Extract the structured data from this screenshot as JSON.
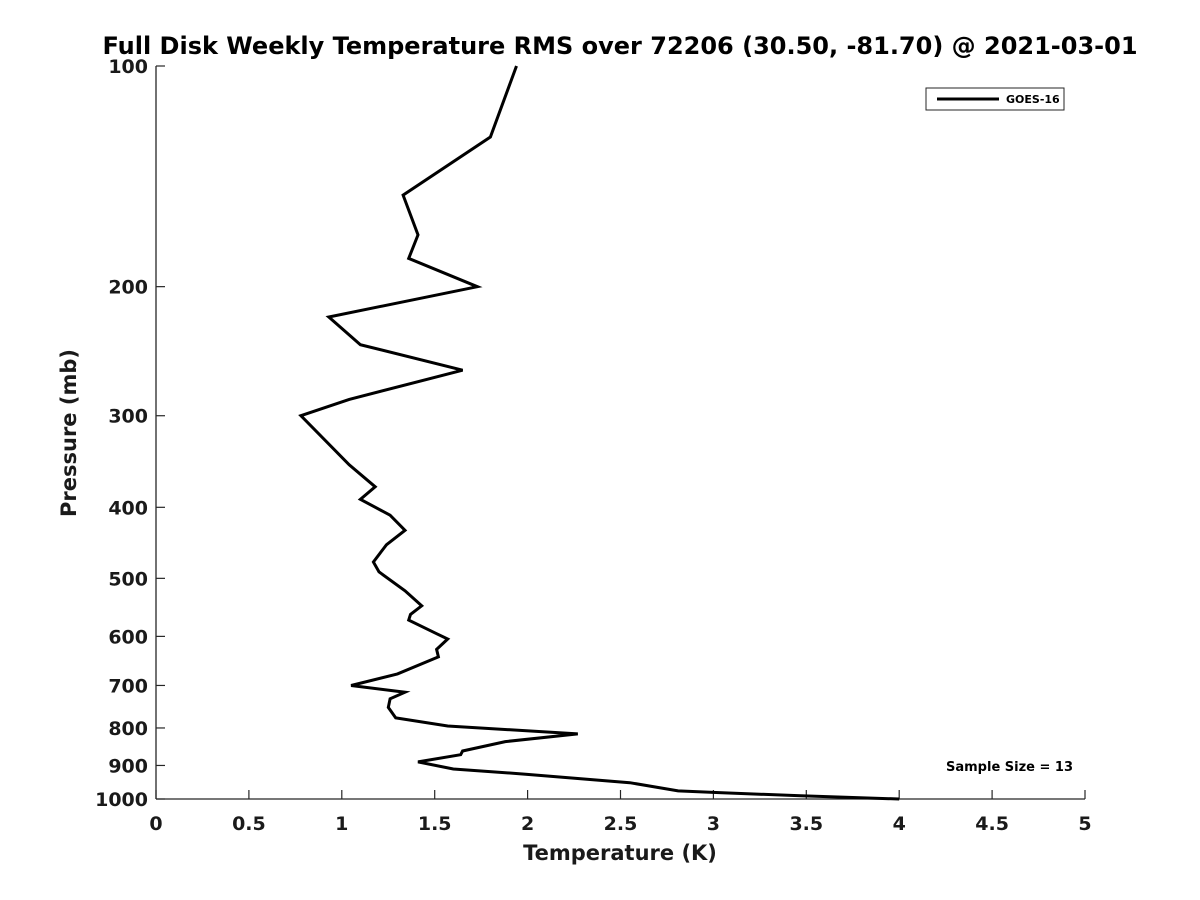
{
  "chart_data": {
    "type": "line",
    "title": "Full Disk Weekly Temperature RMS over 72206 (30.50, -81.70) @ 2021-03-01",
    "xlabel": "Temperature (K)",
    "ylabel": "Pressure (mb)",
    "xlim": [
      0,
      5
    ],
    "ylim": [
      1000,
      100
    ],
    "y_scale": "log",
    "y_reversed": true,
    "x_ticks": [
      0,
      0.5,
      1,
      1.5,
      2,
      2.5,
      3,
      3.5,
      4,
      4.5,
      5
    ],
    "x_tick_labels": [
      "0",
      "0.5",
      "1",
      "1.5",
      "2",
      "2.5",
      "3",
      "3.5",
      "4",
      "4.5",
      "5"
    ],
    "y_ticks": [
      100,
      200,
      300,
      400,
      500,
      600,
      700,
      800,
      900,
      1000
    ],
    "y_tick_labels": [
      "100",
      "200",
      "300",
      "400",
      "500",
      "600",
      "700",
      "800",
      "900",
      "1000"
    ],
    "grid": false,
    "legend_position": "top-right",
    "annotation": "Sample Size = 13",
    "series": [
      {
        "name": "GOES-16",
        "color": "#000000",
        "x": [
          1.94,
          1.8,
          1.33,
          1.41,
          1.36,
          1.73,
          0.93,
          1.1,
          1.65,
          1.04,
          0.78,
          1.04,
          1.18,
          1.1,
          1.26,
          1.34,
          1.24,
          1.17,
          1.2,
          1.34,
          1.43,
          1.37,
          1.36,
          1.51,
          1.57,
          1.51,
          1.52,
          1.3,
          1.05,
          1.34,
          1.26,
          1.25,
          1.29,
          1.57,
          2.27,
          1.88,
          1.65,
          1.64,
          1.41,
          1.6,
          1.99,
          2.55,
          2.81,
          3.03,
          3.47,
          4.0
        ],
        "y": [
          100,
          125,
          150,
          170,
          183,
          200,
          220,
          240,
          260,
          285,
          300,
          350,
          375,
          390,
          410,
          430,
          450,
          475,
          490,
          520,
          545,
          560,
          570,
          595,
          605,
          625,
          640,
          675,
          700,
          715,
          730,
          750,
          775,
          795,
          815,
          835,
          860,
          870,
          890,
          910,
          925,
          950,
          975,
          980,
          990,
          1000
        ]
      }
    ]
  }
}
